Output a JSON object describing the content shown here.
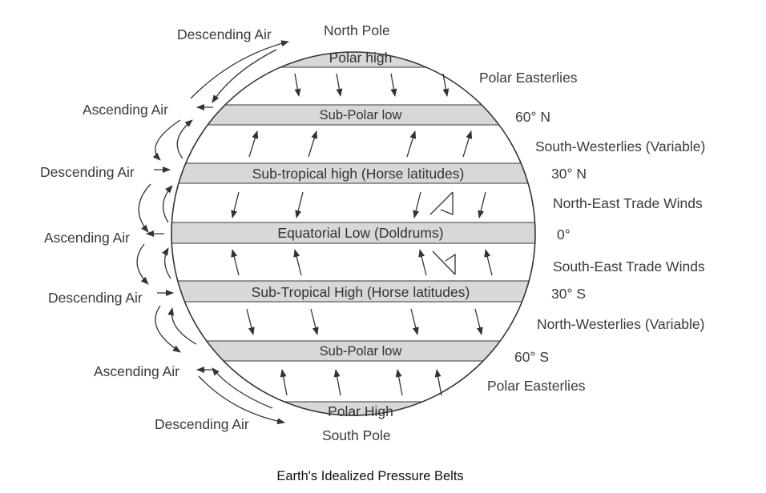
{
  "diagram": {
    "caption": "Earth's Idealized Pressure Belts",
    "poles": {
      "north": "North Pole",
      "south": "South Pole"
    },
    "belts": [
      "Polar high",
      "Sub-Polar  low",
      "Sub-tropical high (Horse latitudes)",
      "Equatorial Low (Doldrums)",
      "Sub-Tropical High (Horse latitudes)",
      "Sub-Polar  low",
      "Polar High"
    ],
    "latitudes": [
      "60° N",
      "30° N",
      "0°",
      "30° S",
      "60° S"
    ],
    "winds": [
      "Polar Easterlies",
      "South-Westerlies (Variable)",
      "North-East Trade Winds",
      "South-East Trade Winds",
      "North-Westerlies (Variable)",
      "Polar Easterlies"
    ],
    "air_labels": [
      "Descending Air",
      "Ascending Air",
      "Descending Air",
      "Ascending Air",
      "Descending Air",
      "Ascending Air",
      "Descending Air"
    ]
  }
}
